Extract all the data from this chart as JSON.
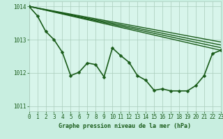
{
  "title": "Graphe pression niveau de la mer (hPa)",
  "background_color": "#c8eee0",
  "plot_bg_color": "#d8f5eb",
  "grid_color": "#aaccbb",
  "line_color": "#1a5c1a",
  "xlim": [
    0,
    23
  ],
  "ylim": [
    1010.85,
    1014.15
  ],
  "yticks": [
    1011,
    1012,
    1013,
    1014
  ],
  "xticks": [
    0,
    1,
    2,
    3,
    4,
    5,
    6,
    7,
    8,
    9,
    10,
    11,
    12,
    13,
    14,
    15,
    16,
    17,
    18,
    19,
    20,
    21,
    22,
    23
  ],
  "main_line": {
    "x": [
      0,
      1,
      2,
      3,
      4,
      5,
      6,
      7,
      8,
      9,
      10,
      11,
      12,
      13,
      14,
      15,
      16,
      17,
      18,
      19,
      20,
      21,
      22,
      23
    ],
    "y": [
      1014.0,
      1013.72,
      1013.25,
      1013.0,
      1012.62,
      1011.92,
      1012.02,
      1012.3,
      1012.25,
      1011.88,
      1012.75,
      1012.52,
      1012.32,
      1011.92,
      1011.78,
      1011.48,
      1011.52,
      1011.46,
      1011.46,
      1011.46,
      1011.62,
      1011.92,
      1012.58,
      1012.68
    ],
    "linewidth": 1.2,
    "markersize": 2.5
  },
  "trend_lines": [
    {
      "x0": 0,
      "y0": 1014.0,
      "x1": 23,
      "y1": 1012.68,
      "lw": 1.0
    },
    {
      "x0": 0,
      "y0": 1014.0,
      "x1": 23,
      "y1": 1012.76,
      "lw": 1.0
    },
    {
      "x0": 0,
      "y0": 1014.0,
      "x1": 23,
      "y1": 1012.84,
      "lw": 1.0
    },
    {
      "x0": 0,
      "y0": 1014.0,
      "x1": 23,
      "y1": 1012.93,
      "lw": 1.0
    }
  ],
  "tick_fontsize": 5.5,
  "label_fontsize": 6.0,
  "tick_color": "#1a5c1a",
  "label_color": "#1a5c1a"
}
